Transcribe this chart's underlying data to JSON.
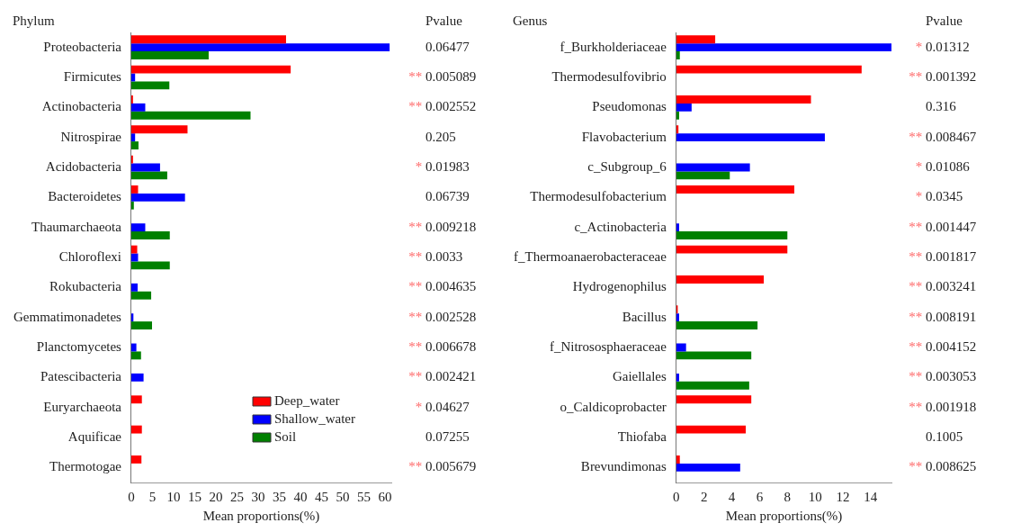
{
  "chart_data": [
    {
      "type": "bar",
      "orientation": "horizontal",
      "ylabel": "Phylum",
      "xlabel": "Mean proportions(%)",
      "categories": [
        "Proteobacteria",
        "Firmicutes",
        "Actinobacteria",
        "Nitrospirae",
        "Acidobacteria",
        "Bacteroidetes",
        "Thaumarchaeota",
        "Chloroflexi",
        "Rokubacteria",
        "Gemmatimonadetes",
        "Planctomycetes",
        "Patescibacteria",
        "Euryarchaeota",
        "Aquificae",
        "Thermotogae"
      ],
      "series": [
        {
          "name": "Deep_water",
          "color": "#ff0000",
          "values": [
            36.6,
            37.7,
            0.4,
            13.3,
            0.4,
            1.6,
            null,
            1.4,
            null,
            0,
            0,
            0,
            2.5,
            2.5,
            2.4
          ]
        },
        {
          "name": "Shallow_water",
          "color": "#0000ff",
          "values": [
            61.1,
            0.9,
            3.3,
            0.9,
            6.8,
            12.7,
            3.3,
            1.6,
            1.5,
            0.5,
            1.2,
            2.9,
            0,
            0,
            0
          ]
        },
        {
          "name": "Soil",
          "color": "#008000",
          "values": [
            18.3,
            9.0,
            28.2,
            1.7,
            8.5,
            0.6,
            9.1,
            9.1,
            4.7,
            4.9,
            2.3,
            0,
            0,
            0,
            0
          ]
        }
      ],
      "xlim": [
        0,
        61.5
      ],
      "xticks": [
        0,
        5,
        10,
        15,
        20,
        25,
        30,
        35,
        40,
        45,
        50,
        55,
        60
      ],
      "grid": false,
      "legend": "bottom right",
      "annotations": [
        "Pvalue",
        "0.06477",
        "** 0.005089",
        "** 0.002552",
        "0.205",
        "* 0.01983",
        "0.06739",
        "** 0.009218",
        "** 0.0033",
        "** 0.004635",
        "** 0.002528",
        "** 0.006678",
        "** 0.002421",
        "* 0.04627",
        "0.07255",
        "** 0.005679"
      ]
    },
    {
      "type": "bar",
      "orientation": "horizontal",
      "ylabel": "Genus",
      "xlabel": "Mean proportions(%)",
      "categories": [
        "f_Burkholderiaceae",
        "Thermodesulfovibrio",
        "Pseudomonas",
        "Flavobacterium",
        "c_Subgroup_6",
        "Thermodesulfobacterium",
        "c_Actinobacteria",
        "f_Thermoanaerobacteraceae",
        "Hydrogenophilus",
        "Bacillus",
        "f_Nitrososphaeraceae",
        "Gaiellales",
        "o_Caldicoprobacter",
        "Thiofaba",
        "Brevundimonas"
      ],
      "series": [
        {
          "color": "#ff0000",
          "values": [
            2.8,
            13.35,
            9.7,
            0.15,
            0,
            8.5,
            0,
            8.0,
            6.3,
            0.1,
            0,
            0,
            5.4,
            5.0,
            0.25
          ]
        },
        {
          "color": "#0000ff",
          "values": [
            15.5,
            0,
            1.1,
            10.7,
            5.3,
            0,
            0.2,
            0,
            0,
            0.2,
            0.7,
            0.2,
            0,
            0,
            4.6
          ]
        },
        {
          "color": "#008000",
          "values": [
            0.25,
            0,
            0.2,
            0,
            3.85,
            0,
            8.0,
            0,
            0,
            5.85,
            5.4,
            5.25,
            0,
            0,
            0
          ]
        }
      ],
      "xlim": [
        0,
        15.5
      ],
      "xticks": [
        0,
        2,
        4,
        6,
        8,
        10,
        12,
        14
      ],
      "grid": false,
      "annotations": [
        "Pvalue",
        "* 0.01312",
        "** 0.001392",
        "0.316",
        "** 0.008467",
        "* 0.01086",
        "* 0.0345",
        "** 0.001447",
        "** 0.001817",
        "** 0.003241",
        "** 0.008191",
        "** 0.004152",
        "** 0.003053",
        "** 0.001918",
        "0.1005",
        "** 0.008625"
      ]
    }
  ]
}
